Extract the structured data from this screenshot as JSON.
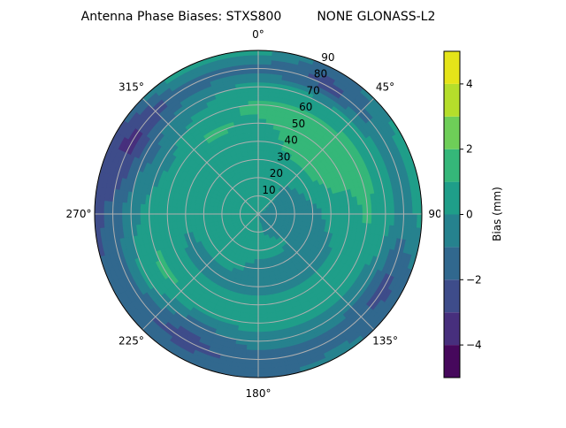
{
  "chart_data": {
    "type": "heatmap",
    "subtype": "polar-contour",
    "title": "Antenna Phase Biases: STXS800         NONE GLONASS-L2",
    "angular_axis": {
      "direction": "clockwise",
      "zero_location": "top",
      "tick_labels": [
        "0°",
        "45°",
        "90°",
        "135°",
        "180°",
        "225°",
        "270°",
        "315°"
      ]
    },
    "radial_axis": {
      "range": [
        0,
        90
      ],
      "tick_labels": [
        "10",
        "20",
        "30",
        "40",
        "50",
        "60",
        "70",
        "80",
        "90"
      ]
    },
    "grid": true,
    "azimuths": [
      0,
      30,
      60,
      90,
      120,
      150,
      180,
      210,
      240,
      270,
      300,
      330
    ],
    "zeniths": [
      0,
      10,
      20,
      30,
      40,
      50,
      60,
      70,
      80,
      90
    ],
    "values_mm": [
      [
        0.3,
        0.5,
        0.5,
        0.5,
        0.5,
        0.8,
        1.3,
        0.5,
        -1.5,
        0.5
      ],
      [
        0.3,
        0.5,
        0.3,
        0.5,
        1.3,
        1.5,
        1.2,
        0.3,
        -2.5,
        -1.5
      ],
      [
        0.3,
        -0.3,
        -0.5,
        0.5,
        1.3,
        1.5,
        1.5,
        0.5,
        -0.5,
        0.5
      ],
      [
        -0.3,
        -0.5,
        -0.5,
        -0.5,
        0.5,
        0.5,
        1.2,
        0.5,
        -0.5,
        0.5
      ],
      [
        -0.3,
        -0.5,
        -0.5,
        -0.5,
        -0.5,
        0.5,
        0.5,
        -0.5,
        -2.5,
        -1.5
      ],
      [
        -0.3,
        -0.5,
        0.5,
        -0.5,
        -0.5,
        0.5,
        0.5,
        -0.5,
        -1.5,
        -0.5
      ],
      [
        0.0,
        0.5,
        0.5,
        -0.5,
        -0.5,
        0.5,
        0.5,
        -0.5,
        -1.5,
        -1.5
      ],
      [
        0.3,
        0.5,
        0.5,
        0.5,
        -0.5,
        0.5,
        0.5,
        -1.5,
        -2.5,
        -1.5
      ],
      [
        0.3,
        0.5,
        0.5,
        0.5,
        -0.5,
        0.5,
        1.3,
        0.5,
        -1.5,
        -1.5
      ],
      [
        0.3,
        0.5,
        0.5,
        0.5,
        0.5,
        0.5,
        0.5,
        -0.5,
        -1.5,
        -2.5
      ],
      [
        0.3,
        0.5,
        0.5,
        0.5,
        0.5,
        0.5,
        -0.5,
        -1.5,
        -3.5,
        -2.5
      ],
      [
        0.3,
        0.5,
        0.5,
        0.5,
        0.5,
        1.2,
        0.5,
        -0.5,
        -1.5,
        0.5
      ]
    ],
    "colorbar": {
      "label": "Bias (mm)",
      "levels": [
        -5,
        -4,
        -3,
        -2,
        -1,
        0,
        1,
        2,
        3,
        4,
        5
      ],
      "ticks": [
        -4,
        -2,
        0,
        2,
        4
      ],
      "tick_labels": [
        "−4",
        "−2",
        "0",
        "2",
        "4"
      ],
      "colormap": "viridis",
      "colors": [
        "#46085c",
        "#472f7d",
        "#3e4c8a",
        "#31688e",
        "#26828e",
        "#1f9e89",
        "#35b779",
        "#6ece58",
        "#b5de2b",
        "#e5e419"
      ]
    }
  }
}
